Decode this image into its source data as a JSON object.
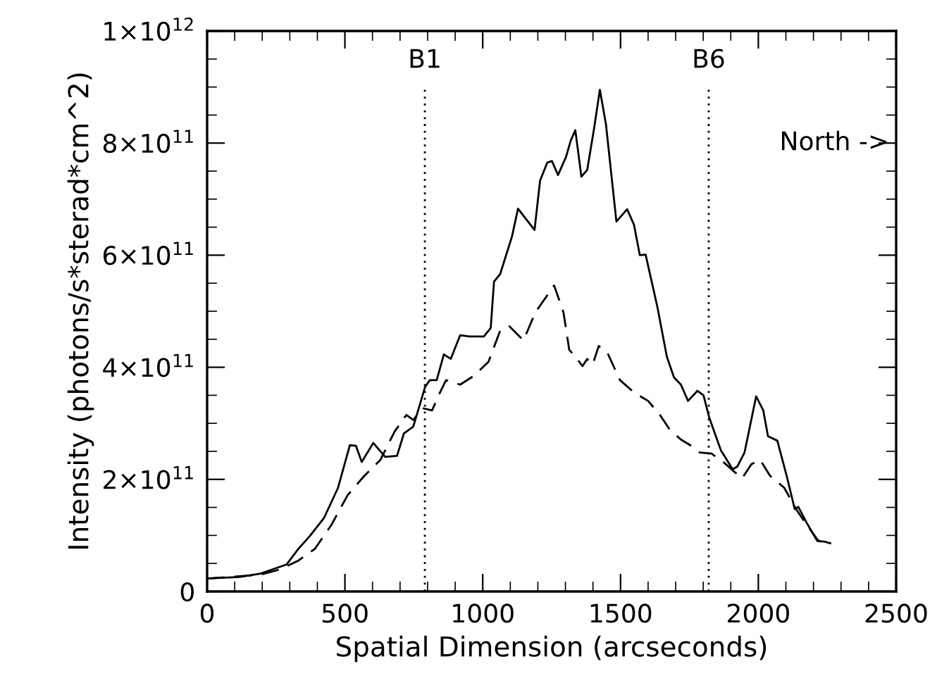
{
  "chart_data": {
    "type": "line",
    "xlabel": "Spatial Dimension (arcseconds)",
    "ylabel": "Intensity (photons/s*sterad*cm^2)",
    "xlim": [
      0,
      2500
    ],
    "ylim": [
      0,
      1000000000000.0
    ],
    "xticks": [
      0,
      {
        "value": 100,
        "label": null
      },
      {
        "value": 200,
        "label": null
      },
      {
        "value": 300,
        "label": null
      },
      {
        "value": 400,
        "label": null
      },
      500,
      {
        "value": 600,
        "label": null
      },
      {
        "value": 700,
        "label": null
      },
      {
        "value": 800,
        "label": null
      },
      {
        "value": 900,
        "label": null
      },
      1000,
      {
        "value": 1100,
        "label": null
      },
      {
        "value": 1200,
        "label": null
      },
      {
        "value": 1300,
        "label": null
      },
      {
        "value": 1400,
        "label": null
      },
      1500,
      {
        "value": 1600,
        "label": null
      },
      {
        "value": 1700,
        "label": null
      },
      {
        "value": 1800,
        "label": null
      },
      {
        "value": 1900,
        "label": null
      },
      2000,
      {
        "value": 2100,
        "label": null
      },
      {
        "value": 2200,
        "label": null
      },
      {
        "value": 2300,
        "label": null
      },
      {
        "value": 2400,
        "label": null
      },
      2500
    ],
    "yticks": [
      0,
      {
        "value": 50000000000.0,
        "label": null
      },
      {
        "value": 100000000000.0,
        "label": null
      },
      {
        "value": 150000000000.0,
        "label": null
      },
      {
        "value": 200000000000.0,
        "label": "2×10$^{11}$"
      },
      {
        "value": 250000000000.0,
        "label": null
      },
      {
        "value": 300000000000.0,
        "label": null
      },
      {
        "value": 350000000000.0,
        "label": null
      },
      {
        "value": 400000000000.0,
        "label": "4×10$^{11}$"
      },
      {
        "value": 450000000000.0,
        "label": null
      },
      {
        "value": 500000000000.0,
        "label": null
      },
      {
        "value": 550000000000.0,
        "label": null
      },
      {
        "value": 600000000000.0,
        "label": "6×10$^{11}$"
      },
      {
        "value": 650000000000.0,
        "label": null
      },
      {
        "value": 700000000000.0,
        "label": null
      },
      {
        "value": 750000000000.0,
        "label": null
      },
      {
        "value": 800000000000.0,
        "label": "8×10$^{11}$"
      },
      {
        "value": 850000000000.0,
        "label": null
      },
      {
        "value": 900000000000.0,
        "label": null
      },
      {
        "value": 950000000000.0,
        "label": null
      },
      {
        "value": 1000000000000.0,
        "label": "1×10$^{12}$"
      }
    ],
    "grid": false,
    "ref_lines": [
      {
        "axis": "x",
        "value": 790,
        "label": "B1",
        "line_style": "dotted",
        "color": "#000000"
      },
      {
        "axis": "x",
        "value": 1820,
        "label": "B6",
        "line_style": "dotted",
        "color": "#000000"
      }
    ],
    "annotations": [
      "North ->"
    ],
    "series": [
      {
        "color": "#000000",
        "line_style": "solid",
        "x": [
          0,
          118,
          194,
          288,
          331,
          373,
          424,
          475,
          518,
          540,
          561,
          603,
          646,
          689,
          714,
          748,
          791,
          808,
          833,
          859,
          884,
          918,
          952,
          1004,
          1029,
          1041,
          1063,
          1106,
          1128,
          1188,
          1208,
          1234,
          1251,
          1273,
          1302,
          1319,
          1336,
          1358,
          1379,
          1404,
          1425,
          1447,
          1485,
          1524,
          1549,
          1570,
          1591,
          1634,
          1668,
          1694,
          1719,
          1745,
          1779,
          1801,
          1822,
          1864,
          1907,
          1924,
          1950,
          1992,
          2018,
          2035,
          2069,
          2103,
          2132,
          2145,
          2176,
          2214,
          2239,
          2261
        ],
        "values": [
          23000000000.0,
          26000000000.0,
          32000000000.0,
          48000000000.0,
          76000000000.0,
          99000000000.0,
          131000000000.0,
          185000000000.0,
          261000000000.0,
          260000000000.0,
          231000000000.0,
          265000000000.0,
          240000000000.0,
          242000000000.0,
          282000000000.0,
          294000000000.0,
          365000000000.0,
          377000000000.0,
          377000000000.0,
          423000000000.0,
          415000000000.0,
          457000000000.0,
          455000000000.0,
          455000000000.0,
          470000000000.0,
          553000000000.0,
          566000000000.0,
          633000000000.0,
          683000000000.0,
          645000000000.0,
          733000000000.0,
          765000000000.0,
          768000000000.0,
          743000000000.0,
          775000000000.0,
          804000000000.0,
          823000000000.0,
          740000000000.0,
          752000000000.0,
          826000000000.0,
          895000000000.0,
          834000000000.0,
          660000000000.0,
          682000000000.0,
          654000000000.0,
          600000000000.0,
          601000000000.0,
          507000000000.0,
          419000000000.0,
          382000000000.0,
          369000000000.0,
          340000000000.0,
          358000000000.0,
          350000000000.0,
          310000000000.0,
          252000000000.0,
          218000000000.0,
          223000000000.0,
          248000000000.0,
          348000000000.0,
          323000000000.0,
          277000000000.0,
          269000000000.0,
          206000000000.0,
          147000000000.0,
          151000000000.0,
          122000000000.0,
          90000000000.0,
          89000000000.0,
          86000000000.0
        ]
      },
      {
        "color": "#000000",
        "line_style": "dashed",
        "x": [
          0,
          194,
          263,
          331,
          391,
          450,
          510,
          570,
          629,
          680,
          723,
          748,
          782,
          816,
          842,
          867,
          918,
          969,
          1021,
          1063,
          1097,
          1148,
          1191,
          1259,
          1293,
          1314,
          1336,
          1362,
          1379,
          1399,
          1421,
          1455,
          1498,
          1549,
          1600,
          1643,
          1677,
          1719,
          1753,
          1787,
          1830,
          1873,
          1907,
          1941,
          1975,
          2006,
          2043,
          2094,
          2137,
          2171,
          2214,
          2248
        ],
        "values": [
          23000000000.0,
          30000000000.0,
          39000000000.0,
          55000000000.0,
          76000000000.0,
          118000000000.0,
          172000000000.0,
          206000000000.0,
          235000000000.0,
          285000000000.0,
          315000000000.0,
          306000000000.0,
          327000000000.0,
          323000000000.0,
          352000000000.0,
          377000000000.0,
          369000000000.0,
          385000000000.0,
          410000000000.0,
          465000000000.0,
          473000000000.0,
          448000000000.0,
          498000000000.0,
          546000000000.0,
          498000000000.0,
          431000000000.0,
          419000000000.0,
          402000000000.0,
          415000000000.0,
          405000000000.0,
          438000000000.0,
          423000000000.0,
          377000000000.0,
          355000000000.0,
          340000000000.0,
          315000000000.0,
          290000000000.0,
          271000000000.0,
          261000000000.0,
          248000000000.0,
          246000000000.0,
          231000000000.0,
          216000000000.0,
          202000000000.0,
          227000000000.0,
          235000000000.0,
          206000000000.0,
          185000000000.0,
          147000000000.0,
          122000000000.0,
          93000000000.0,
          80000000000.0
        ]
      }
    ]
  }
}
